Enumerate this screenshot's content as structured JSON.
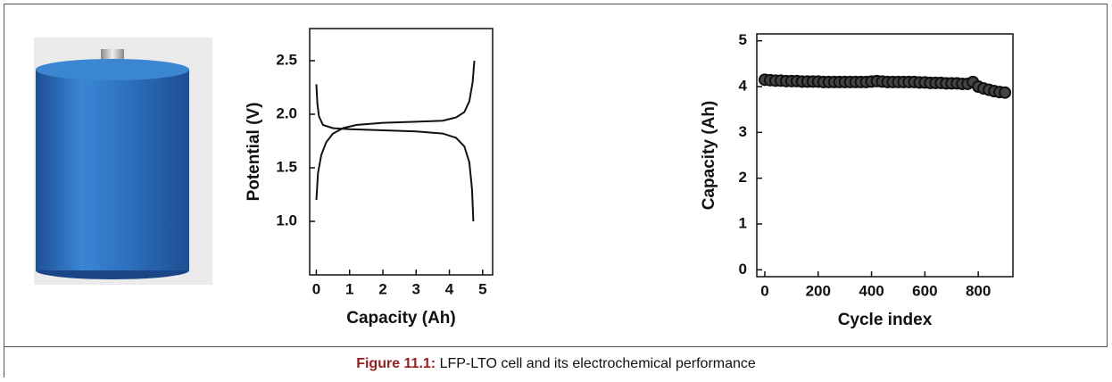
{
  "figure": {
    "caption_label": "Figure 11.1:",
    "caption_text": "LFP-LTO cell and its electrochemical performance"
  },
  "chart_data": [
    {
      "type": "line",
      "xlabel": "Capacity (Ah)",
      "ylabel": "Potential (V)",
      "xlim": [
        -0.2,
        5.3
      ],
      "ylim": [
        0.5,
        2.8
      ],
      "xticks": [
        0,
        1,
        2,
        3,
        4,
        5
      ],
      "yticks": [
        {
          "value": 1,
          "label": "1.0"
        },
        1.5,
        {
          "value": 2,
          "label": "2.0"
        },
        2.5
      ],
      "series": [
        {
          "color": "#111111",
          "x": [
            0,
            0.05,
            0.15,
            0.3,
            0.5,
            0.8,
            1.2,
            2,
            3,
            3.8,
            4.2,
            4.45,
            4.6,
            4.7,
            4.75
          ],
          "values": [
            1.2,
            1.45,
            1.62,
            1.74,
            1.82,
            1.87,
            1.9,
            1.92,
            1.93,
            1.94,
            1.97,
            2.02,
            2.12,
            2.3,
            2.5
          ]
        },
        {
          "color": "#111111",
          "x": [
            0,
            0.03,
            0.08,
            0.2,
            0.5,
            1,
            2,
            3,
            3.8,
            4.2,
            4.45,
            4.6,
            4.68,
            4.72
          ],
          "values": [
            2.28,
            2.1,
            1.98,
            1.9,
            1.87,
            1.86,
            1.85,
            1.84,
            1.82,
            1.78,
            1.7,
            1.55,
            1.3,
            1.0
          ]
        }
      ]
    },
    {
      "type": "scatter",
      "xlabel": "Cycle index",
      "ylabel": "Capacity (Ah)",
      "xlim": [
        -30,
        930
      ],
      "ylim": [
        -0.15,
        5.15
      ],
      "xticks": [
        0,
        200,
        400,
        600,
        800
      ],
      "yticks": [
        0,
        1,
        2,
        3,
        4,
        5
      ],
      "series": [
        {
          "color": "#111111",
          "x": [
            0,
            20,
            40,
            60,
            80,
            100,
            120,
            140,
            160,
            180,
            200,
            220,
            240,
            260,
            280,
            300,
            320,
            340,
            360,
            380,
            400,
            420,
            440,
            460,
            480,
            500,
            520,
            540,
            560,
            580,
            600,
            620,
            640,
            660,
            680,
            700,
            720,
            740,
            760,
            780,
            800,
            820,
            840,
            860,
            880,
            900
          ],
          "values": [
            4.15,
            4.14,
            4.13,
            4.13,
            4.12,
            4.12,
            4.12,
            4.11,
            4.11,
            4.11,
            4.11,
            4.1,
            4.1,
            4.1,
            4.1,
            4.1,
            4.1,
            4.1,
            4.1,
            4.1,
            4.11,
            4.12,
            4.11,
            4.1,
            4.1,
            4.1,
            4.1,
            4.1,
            4.1,
            4.09,
            4.09,
            4.08,
            4.08,
            4.08,
            4.07,
            4.07,
            4.07,
            4.06,
            4.06,
            4.1,
            4.0,
            3.96,
            3.93,
            3.9,
            3.88,
            3.87
          ]
        }
      ]
    }
  ]
}
